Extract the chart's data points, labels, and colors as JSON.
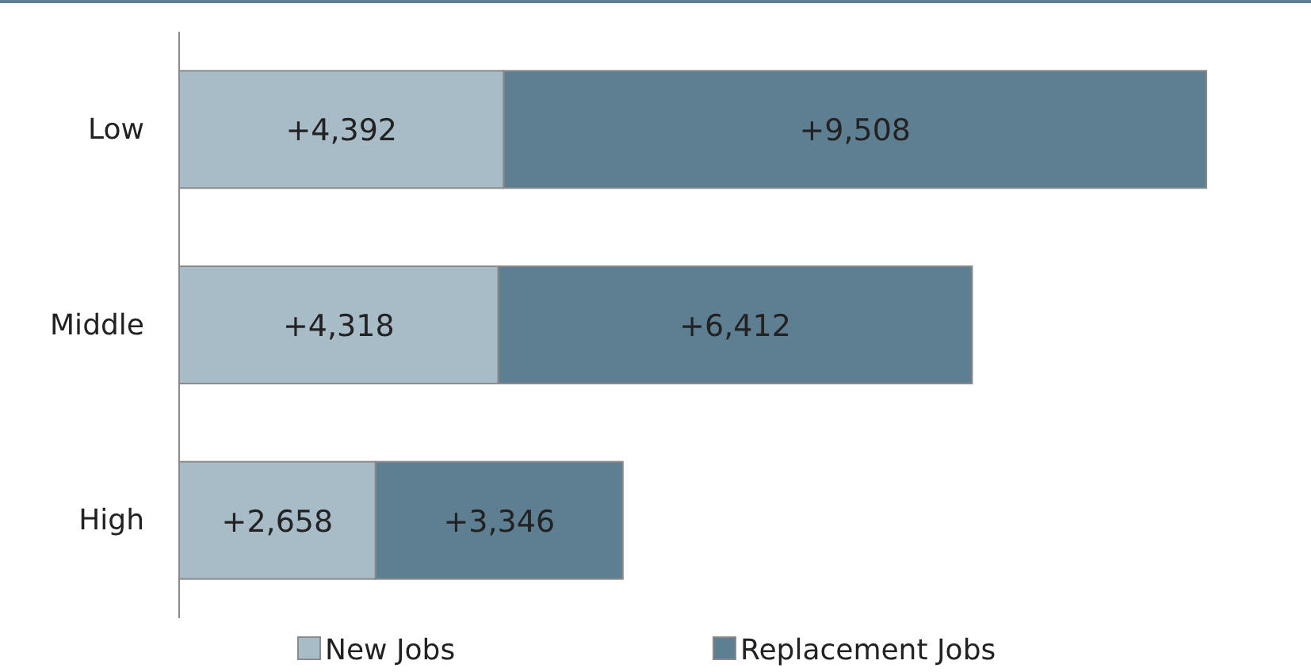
{
  "chart_data": {
    "type": "bar",
    "orientation": "horizontal",
    "stacked": true,
    "categories": [
      "Low",
      "Middle",
      "High"
    ],
    "series": [
      {
        "name": "New Jobs",
        "color": "#a8bcc7",
        "values": [
          4392,
          4318,
          2658
        ],
        "value_labels": [
          "+4,392",
          "+4,318",
          "+2,658"
        ]
      },
      {
        "name": "Replacement Jobs",
        "color": "#5e7f91",
        "values": [
          9508,
          6412,
          3346
        ],
        "value_labels": [
          "+9,508",
          "+6,412",
          "+3,346"
        ]
      }
    ],
    "legend": "bottom",
    "grid": false
  }
}
